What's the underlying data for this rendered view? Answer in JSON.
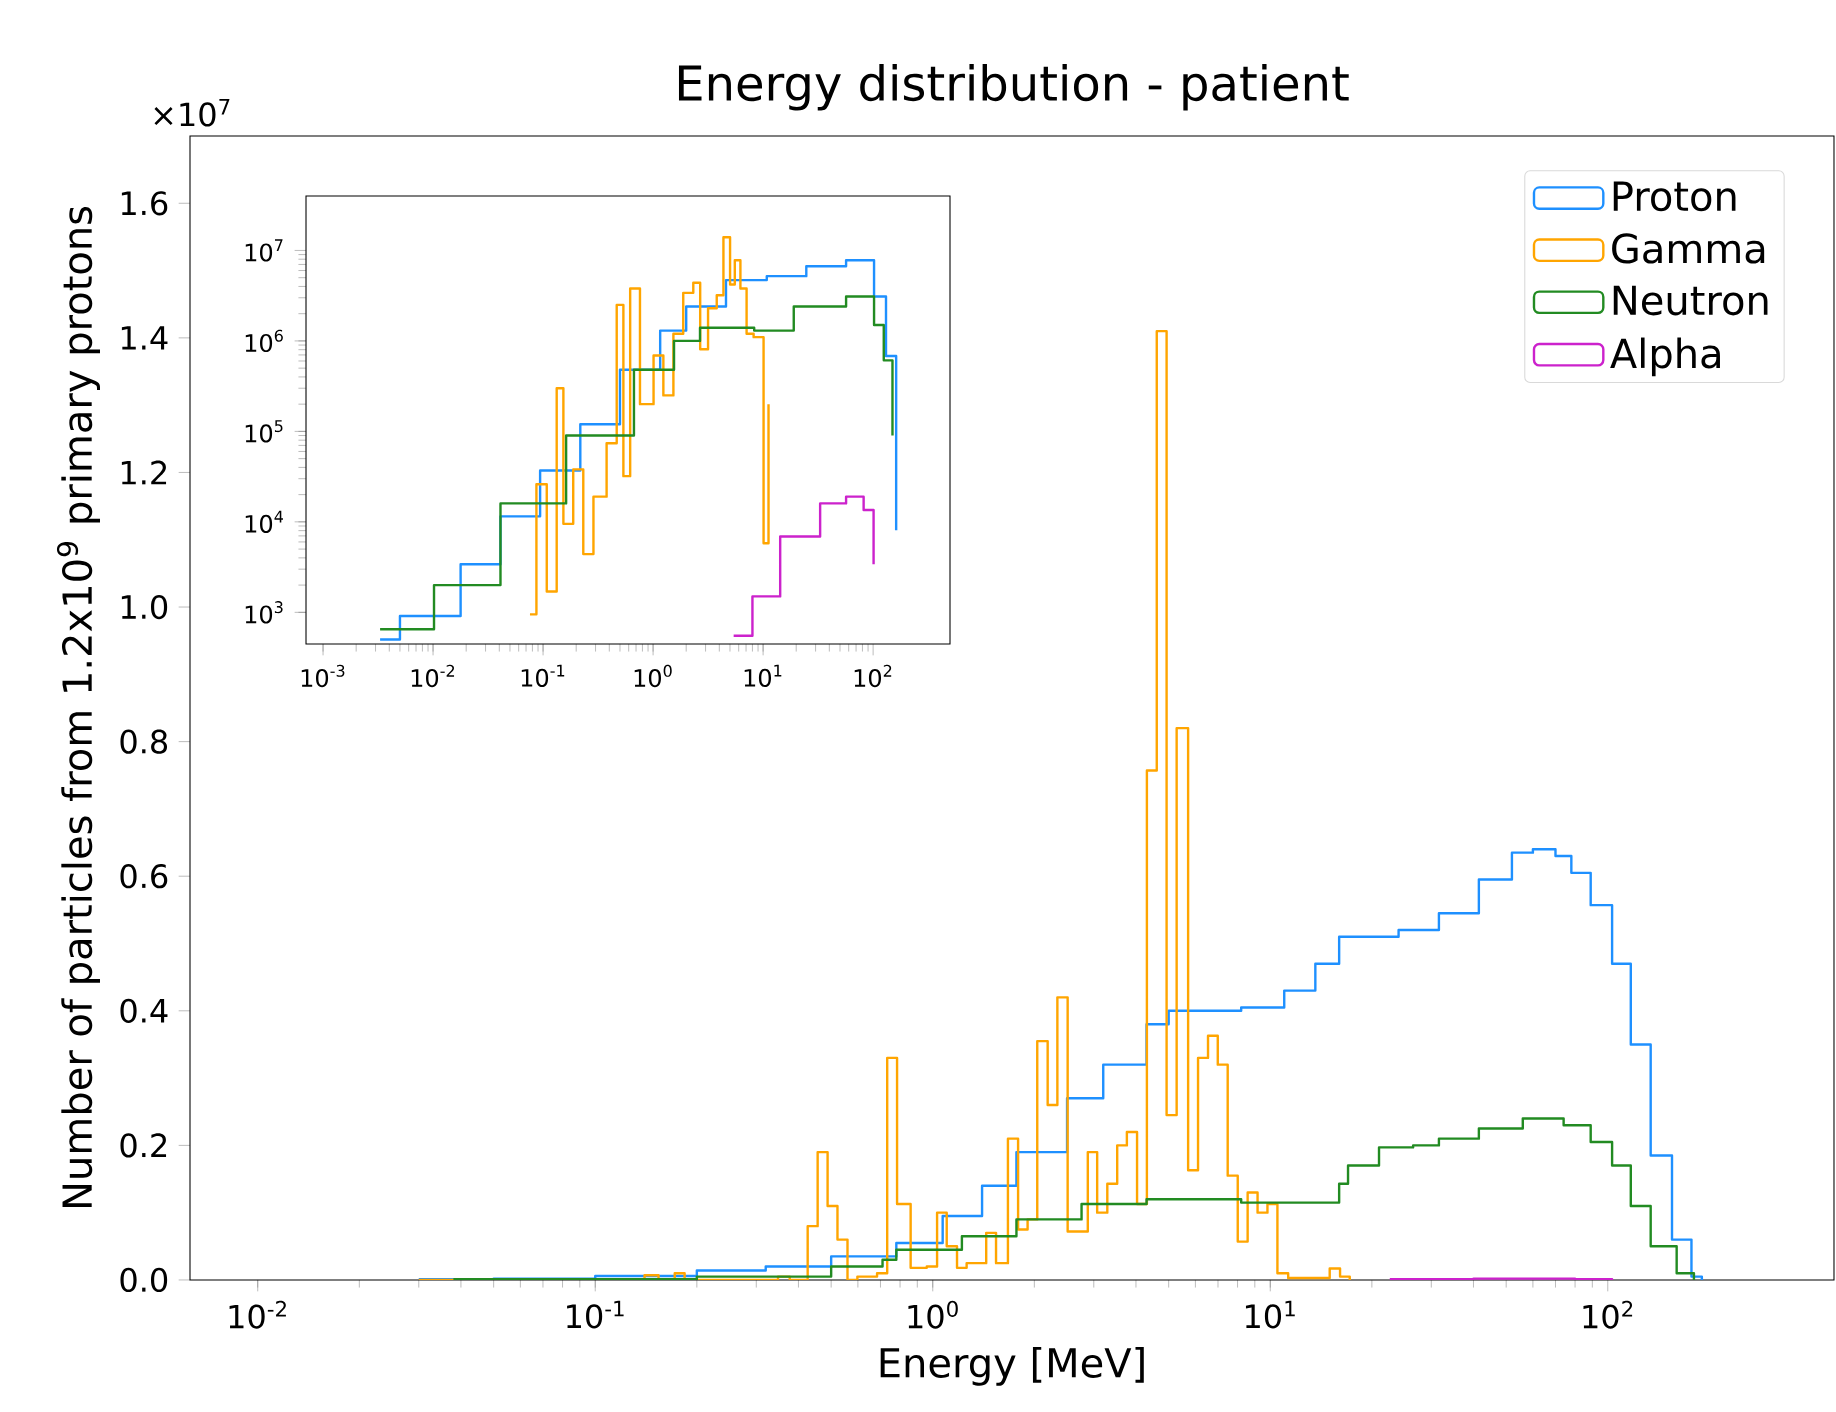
{
  "chart_data": [
    {
      "type": "step",
      "title": "Energy distribution - patient",
      "xlabel": "Energy [MeV]",
      "ylabel": "Number of particles from 1.2x10$^{9}$ primary protons",
      "log": "x",
      "grid": false,
      "legend": "top right",
      "xlim": [
        0.0063,
        468
      ],
      "ylim": [
        0,
        1.7
      ],
      "xticks": [
        {
          "value": 0.01,
          "label": "10$^{-2}$"
        },
        {
          "value": 0.1,
          "label": "10$^{-1}$"
        },
        {
          "value": 1,
          "label": "10$^{0}$"
        },
        {
          "value": 10,
          "label": "10$^{1}$"
        },
        {
          "value": 100,
          "label": "10$^{2}$"
        }
      ],
      "yticks": [
        {
          "value": 0,
          "label": "0.0"
        },
        0.2,
        0.4,
        0.6,
        0.8,
        {
          "value": 1,
          "label": "1.0"
        },
        1.2,
        1.4,
        1.6
      ],
      "annotations": [
        "×10$^{7}$"
      ],
      "series": [
        {
          "name": "Proton",
          "color": "#1e90ff",
          "x": [
            0.03,
            0.05,
            0.1,
            0.2,
            0.32,
            0.5,
            0.78,
            1.07,
            1.4,
            1.77,
            2.5,
            3.2,
            4.3,
            5,
            8.2,
            11,
            13.6,
            16,
            24,
            31.6,
            41.5,
            52,
            60,
            70,
            78,
            89,
            103,
            117,
            134,
            155,
            177,
            190
          ],
          "values": [
            0.001,
            0.002,
            0.006,
            0.014,
            0.02,
            0.035,
            0.055,
            0.095,
            0.14,
            0.19,
            0.27,
            0.32,
            0.38,
            0.4,
            0.405,
            0.43,
            0.47,
            0.51,
            0.52,
            0.545,
            0.595,
            0.635,
            0.64,
            0.63,
            0.605,
            0.557,
            0.47,
            0.35,
            0.185,
            0.06,
            0.005,
            0
          ]
        },
        {
          "name": "Gamma",
          "color": "#ffa500",
          "x": [
            0.03,
            0.14,
            0.154,
            0.172,
            0.184,
            0.348,
            0.377,
            0.426,
            0.456,
            0.488,
            0.522,
            0.559,
            0.598,
            0.684,
            0.733,
            0.784,
            0.86,
            0.96,
            1.03,
            1.1,
            1.18,
            1.26,
            1.44,
            1.54,
            1.67,
            1.79,
            1.91,
            2.04,
            2.19,
            2.34,
            2.51,
            2.88,
            3.07,
            3.29,
            3.52,
            3.76,
            4.03,
            4.31,
            4.61,
            4.93,
            5.28,
            5.71,
            6.11,
            6.54,
            6.99,
            7.48,
            8.01,
            8.57,
            9.17,
            9.81,
            10.5,
            11.3,
            15,
            16.1,
            17.2
          ],
          "values": [
            0,
            0.007,
            0,
            0.01,
            0,
            0.005,
            0,
            0.08,
            0.19,
            0.11,
            0.06,
            0,
            0.005,
            0.01,
            0.33,
            0.113,
            0.018,
            0.02,
            0.1,
            0.05,
            0.018,
            0.025,
            0.07,
            0.025,
            0.21,
            0.075,
            0.09,
            0.355,
            0.26,
            0.42,
            0.072,
            0.19,
            0.1,
            0.143,
            0.2,
            0.22,
            0.113,
            0.757,
            1.41,
            0.245,
            0.82,
            0.163,
            0.33,
            0.363,
            0.32,
            0.155,
            0.057,
            0.13,
            0.1,
            0.113,
            0.01,
            0.003,
            0.017,
            0.005,
            0
          ]
        },
        {
          "name": "Neutron",
          "color": "#228b22",
          "x": [
            0.038,
            0.2,
            0.5,
            0.71,
            0.78,
            1.22,
            1.77,
            2.76,
            4.3,
            8.2,
            16,
            17,
            21,
            26.5,
            31.6,
            41.5,
            56,
            74,
            89,
            103,
            117,
            134,
            160,
            180
          ],
          "values": [
            0.001,
            0.005,
            0.02,
            0.03,
            0.045,
            0.065,
            0.09,
            0.113,
            0.12,
            0.115,
            0.143,
            0.17,
            0.197,
            0.2,
            0.21,
            0.225,
            0.24,
            0.23,
            0.205,
            0.17,
            0.11,
            0.05,
            0.01,
            0
          ]
        },
        {
          "name": "Alpha",
          "color": "#cc22cc",
          "x": [
            22.6,
            40,
            80,
            103
          ],
          "values": [
            0.001,
            0.002,
            0.001,
            0
          ]
        }
      ]
    },
    {
      "type": "step",
      "log": "xy",
      "grid": false,
      "xlim": [
        0.0007,
        500
      ],
      "ylim": [
        447,
        40000000
      ],
      "xticks": [
        {
          "value": 0.001,
          "label": "10$^{-3}$"
        },
        {
          "value": 0.01,
          "label": "10$^{-2}$"
        },
        {
          "value": 0.1,
          "label": "10$^{-1}$"
        },
        {
          "value": 1,
          "label": "10$^{0}$"
        },
        {
          "value": 10,
          "label": "10$^{1}$"
        },
        {
          "value": 100,
          "label": "10$^{2}$"
        }
      ],
      "yticks": [
        {
          "value": 1000,
          "label": "10$^{3}$"
        },
        {
          "value": 10000,
          "label": "10$^{4}$"
        },
        {
          "value": 100000,
          "label": "10$^{5}$"
        },
        {
          "value": 1000000,
          "label": "10$^{6}$"
        },
        {
          "value": 10000000,
          "label": "10$^{7}$"
        }
      ],
      "series": [
        {
          "color": "#1e90ff",
          "x": [
            0.0033,
            0.005,
            0.0178,
            0.041,
            0.094,
            0.218,
            0.5,
            1.16,
            2.0,
            4.6,
            10.8,
            24.7,
            56.8,
            102,
            131,
            162
          ],
          "values": [
            500,
            910,
            3400,
            11500,
            37000,
            120000,
            480000,
            1300000,
            2400000,
            4700000,
            5200000,
            6700000,
            7800000,
            3100000,
            680000,
            8100
          ]
        },
        {
          "color": "#ffa500",
          "x": [
            0.076,
            0.087,
            0.108,
            0.133,
            0.153,
            0.188,
            0.232,
            0.287,
            0.378,
            0.467,
            0.537,
            0.619,
            0.76,
            1.01,
            1.24,
            1.53,
            1.88,
            2.32,
            2.68,
            3.16,
            3.79,
            4.36,
            5.01,
            5.53,
            6.22,
            7.08,
            8.2,
            10.1,
            11.2
          ],
          "values": [
            950,
            26000,
            1700,
            300000,
            9500,
            38000,
            4400,
            19000,
            74000,
            2500000,
            32000,
            3800000,
            200000,
            690000,
            250000,
            1200000,
            3400000,
            4400000,
            810000,
            2300000,
            3200000,
            14000000,
            4200000,
            7800000,
            3800000,
            1200000,
            1100000,
            5800,
            200000
          ]
        },
        {
          "color": "#228b22",
          "x": [
            0.0033,
            0.0102,
            0.041,
            0.162,
            0.67,
            1.55,
            2.67,
            8.3,
            19,
            56.8,
            102,
            125,
            150
          ],
          "values": [
            650,
            2000,
            16000,
            90000,
            480000,
            1000000,
            1400000,
            1300000,
            2400000,
            3100000,
            1500000,
            610000,
            90000
          ]
        },
        {
          "color": "#cc22cc",
          "x": [
            5.4,
            8,
            14.3,
            33,
            56.8,
            82,
            101
          ],
          "values": [
            550,
            1500,
            6900,
            16000,
            19000,
            13500,
            3400
          ]
        }
      ]
    }
  ]
}
